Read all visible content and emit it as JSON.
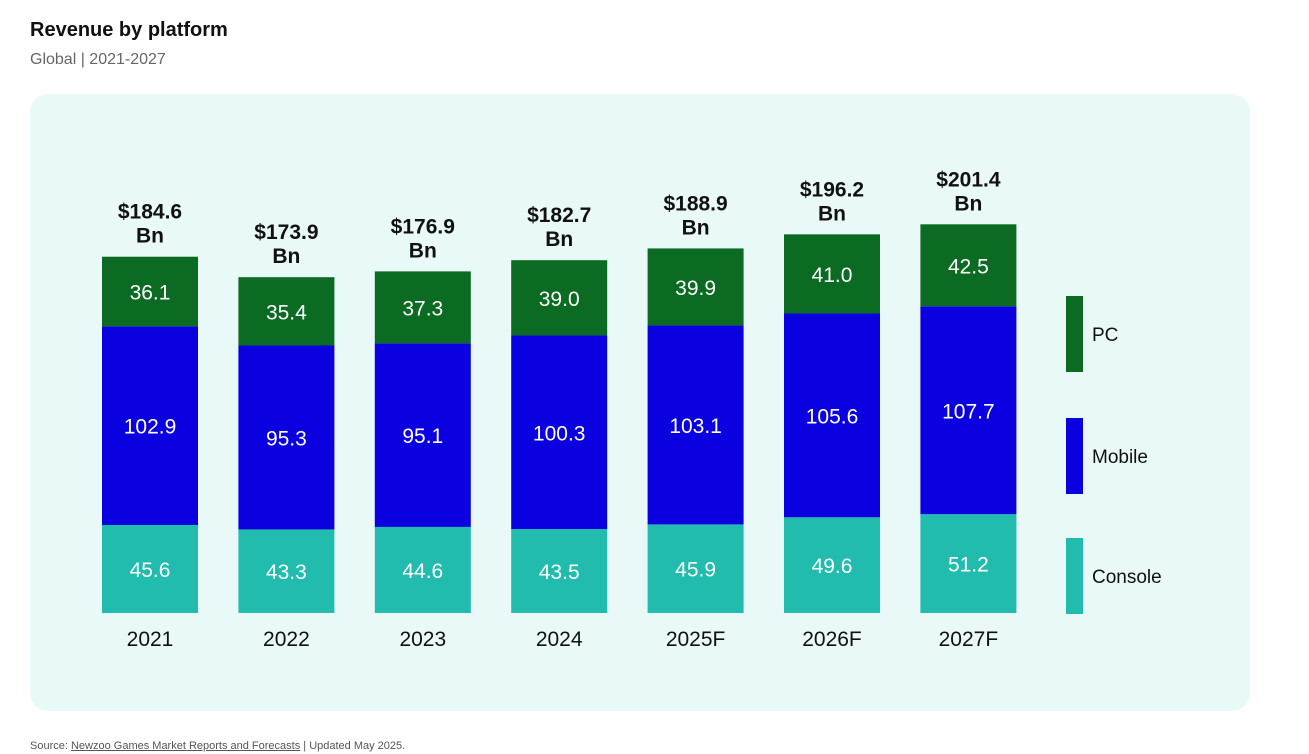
{
  "header": {
    "title": "Revenue by platform",
    "subtitle": "Global | 2021-2027"
  },
  "footer": {
    "source_prefix": "Source: ",
    "source_link": "Newzoo Games Market Reports and Forecasts",
    "source_suffix": " | Updated May 2025."
  },
  "colors": {
    "pc": "#0b6b23",
    "mobile": "#0a00e0",
    "console": "#22bcae",
    "panel": "#e9f9f8"
  },
  "chart_data": {
    "type": "bar",
    "stacked": true,
    "categories": [
      "2021",
      "2022",
      "2023",
      "2024",
      "2025F",
      "2026F",
      "2027F"
    ],
    "series": [
      {
        "name": "Console",
        "color": "#22bcae",
        "values": [
          45.6,
          43.3,
          44.6,
          43.5,
          45.9,
          49.6,
          51.2
        ]
      },
      {
        "name": "Mobile",
        "color": "#0a00e0",
        "values": [
          102.9,
          95.3,
          95.1,
          100.3,
          103.1,
          105.6,
          107.7
        ]
      },
      {
        "name": "PC",
        "color": "#0b6b23",
        "values": [
          36.1,
          35.4,
          37.3,
          39.0,
          39.9,
          41.0,
          42.5
        ]
      }
    ],
    "value_labels": {
      "Console": [
        "45.6",
        "43.3",
        "44.6",
        "43.5",
        "45.9",
        "49.6",
        "51.2"
      ],
      "Mobile": [
        "102.9",
        "95.3",
        "95.1",
        "100.3",
        "103.1",
        "105.6",
        "107.7"
      ],
      "PC": [
        "36.1",
        "35.4",
        "37.3",
        "39.0",
        "39.9",
        "41.0",
        "42.5"
      ]
    },
    "totals": [
      "$184.6",
      "$173.9",
      "$176.9",
      "$182.7",
      "$188.9",
      "$196.2",
      "$201.4"
    ],
    "total_unit": "Bn",
    "legend": [
      {
        "name": "PC",
        "color": "#0b6b23"
      },
      {
        "name": "Mobile",
        "color": "#0a00e0"
      },
      {
        "name": "Console",
        "color": "#22bcae"
      }
    ],
    "legend_position": "right",
    "grid": false,
    "ylim": [
      0,
      210
    ]
  }
}
